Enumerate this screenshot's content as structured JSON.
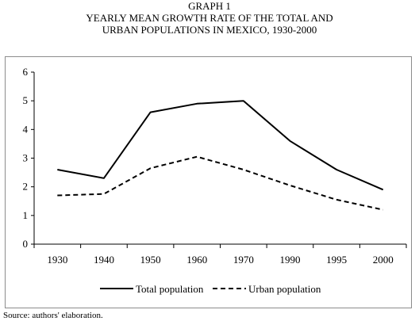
{
  "header": {
    "label": "GRAPH 1",
    "title_line1": "YEARLY MEAN GROWTH RATE OF THE TOTAL AND",
    "title_line2": "URBAN POPULATIONS IN MEXICO, 1930-2000"
  },
  "source": "Source: authors' elaboration.",
  "chart_data": {
    "type": "line",
    "title": "YEARLY MEAN GROWTH RATE OF THE TOTAL AND URBAN POPULATIONS IN MEXICO, 1930-2000",
    "categories": [
      "1930",
      "1940",
      "1950",
      "1960",
      "1970",
      "1990",
      "1995",
      "2000"
    ],
    "y_ticks": [
      "0",
      "1",
      "2",
      "3",
      "4",
      "5",
      "6"
    ],
    "ylim": [
      0,
      6
    ],
    "grid": false,
    "legend_position": "bottom",
    "series": [
      {
        "name": "Total population",
        "style": "solid",
        "values": [
          2.6,
          2.3,
          4.6,
          4.9,
          5.0,
          3.6,
          2.6,
          1.9
        ]
      },
      {
        "name": "Urban population",
        "style": "dashed",
        "values": [
          1.7,
          1.75,
          2.65,
          3.05,
          2.6,
          2.05,
          1.55,
          1.2
        ]
      }
    ]
  }
}
